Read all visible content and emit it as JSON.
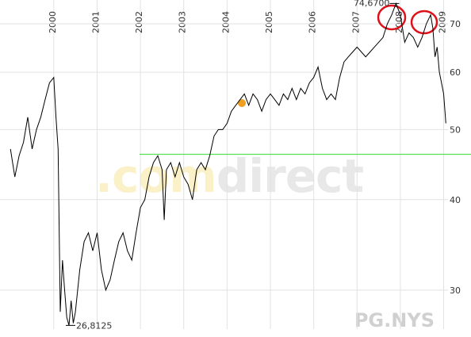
{
  "chart_data": {
    "type": "line",
    "log_scale": true,
    "grid": true,
    "xlim": [
      1998.85,
      2009.1
    ],
    "xticks": [
      2000,
      2001,
      2002,
      2003,
      2004,
      2005,
      2006,
      2007,
      2008,
      2009
    ],
    "ylim": [
      26.5,
      75.5
    ],
    "yticks": [
      30,
      40,
      50,
      60,
      70
    ],
    "reference_line": {
      "value": 46.2,
      "color": "#33dd33"
    },
    "annotations": [
      {
        "x": 2007.9,
        "value": 74.67,
        "label": "74,6700",
        "side": "left"
      },
      {
        "x": 2000.35,
        "value": 26.8125,
        "label": "26,8125",
        "side": "right"
      }
    ],
    "watermarks": [
      ".com",
      "direct",
      "PG.NYS"
    ],
    "series": [
      {
        "color": "#000000",
        "x": [
          1999.0,
          1999.1,
          1999.2,
          1999.3,
          1999.4,
          1999.5,
          1999.6,
          1999.7,
          1999.8,
          1999.9,
          2000.0,
          2000.05,
          2000.1,
          2000.15,
          2000.2,
          2000.25,
          2000.3,
          2000.35,
          2000.4,
          2000.45,
          2000.5,
          2000.6,
          2000.7,
          2000.8,
          2000.9,
          2001.0,
          2001.1,
          2001.2,
          2001.3,
          2001.4,
          2001.5,
          2001.6,
          2001.7,
          2001.8,
          2001.9,
          2002.0,
          2002.1,
          2002.2,
          2002.3,
          2002.4,
          2002.5,
          2002.55,
          2002.6,
          2002.7,
          2002.8,
          2002.9,
          2003.0,
          2003.1,
          2003.2,
          2003.3,
          2003.4,
          2003.5,
          2003.6,
          2003.7,
          2003.8,
          2003.9,
          2004.0,
          2004.1,
          2004.2,
          2004.3,
          2004.4,
          2004.5,
          2004.6,
          2004.7,
          2004.8,
          2004.9,
          2005.0,
          2005.1,
          2005.2,
          2005.3,
          2005.4,
          2005.5,
          2005.6,
          2005.7,
          2005.8,
          2005.9,
          2006.0,
          2006.1,
          2006.2,
          2006.3,
          2006.4,
          2006.5,
          2006.6,
          2006.7,
          2006.8,
          2006.9,
          2007.0,
          2007.1,
          2007.2,
          2007.3,
          2007.4,
          2007.5,
          2007.6,
          2007.7,
          2007.8,
          2007.9,
          2008.0,
          2008.1,
          2008.2,
          2008.3,
          2008.4,
          2008.5,
          2008.6,
          2008.7,
          2008.75,
          2008.8,
          2008.85,
          2008.9,
          2008.95,
          2009.0,
          2009.05
        ],
        "values": [
          47,
          43,
          46,
          48,
          52,
          47,
          50,
          52,
          55,
          58,
          59,
          52,
          47,
          28,
          33,
          30,
          27.5,
          26.8125,
          29,
          27,
          28,
          32,
          35,
          36,
          34,
          36,
          32,
          30,
          31,
          33,
          35,
          36,
          34,
          33,
          36,
          39,
          40,
          43,
          45,
          46,
          44,
          37.5,
          44,
          45,
          43,
          45,
          43,
          42,
          40,
          44,
          45,
          44,
          46,
          49,
          50,
          50,
          51,
          53,
          54,
          55,
          56,
          54,
          56,
          55,
          53,
          55,
          56,
          55,
          54,
          56,
          55,
          57,
          55,
          57,
          56,
          58,
          59,
          61,
          57,
          55,
          56,
          55,
          59,
          62,
          63,
          64,
          65,
          64,
          63,
          64,
          65,
          66,
          67,
          70,
          72,
          74.67,
          72,
          66,
          68,
          67,
          65,
          67,
          70,
          72,
          69,
          63,
          65,
          60,
          58,
          56,
          51
        ]
      }
    ]
  }
}
